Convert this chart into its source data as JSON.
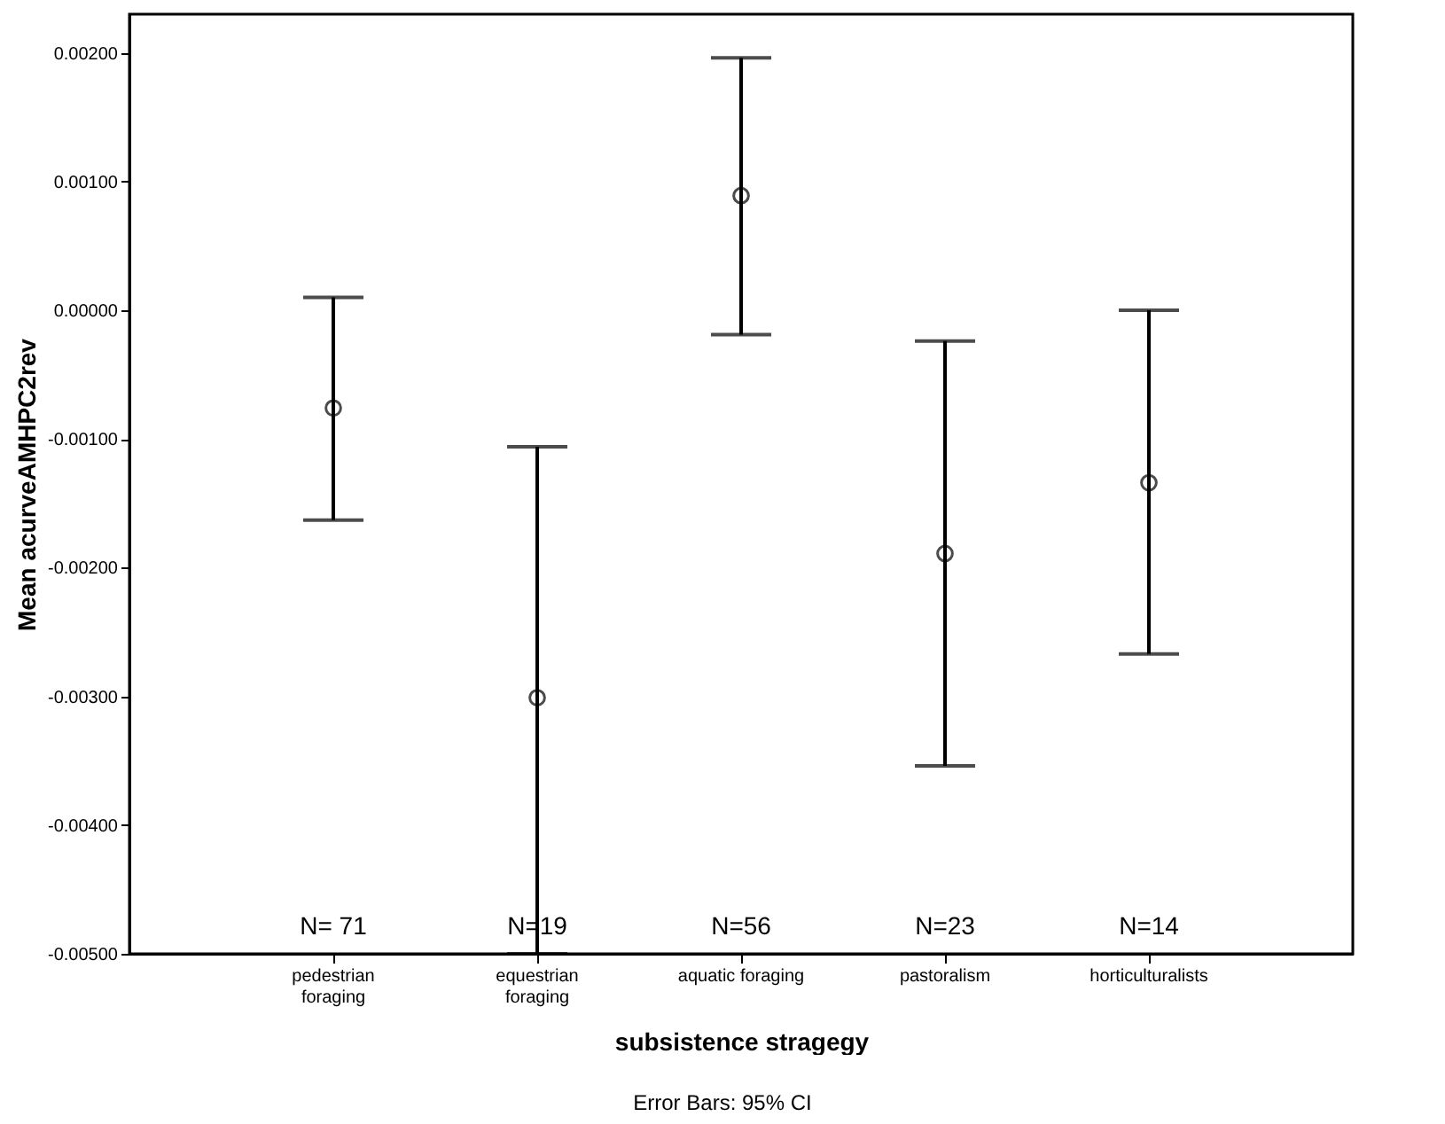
{
  "chart_data": {
    "type": "scatter",
    "xlabel": "subsistence stragegy",
    "ylabel": "Mean acurveAMHPC2rev",
    "categories": [
      "pedestrian\nforaging",
      "equestrian\nforaging",
      "aquatic foraging",
      "pastoralism",
      "horticulturalists"
    ],
    "values": [
      -0.00076,
      -0.00301,
      0.00089,
      -0.00189,
      -0.00134
    ],
    "errors": [
      [
        -0.00163,
        0.0001
      ],
      [
        -0.005,
        -0.00106
      ],
      [
        -0.00019,
        0.00196
      ],
      [
        -0.00354,
        -0.00024
      ],
      [
        -0.00267,
        0
      ]
    ],
    "color": "#000000",
    "marker": "circle",
    "ylim": [
      -0.005,
      0.0023
    ],
    "yticks": [
      {
        "value": -0.005,
        "label": "-0.00500"
      },
      {
        "value": -0.004,
        "label": "-0.00400"
      },
      {
        "value": -0.003,
        "label": "-0.00300"
      },
      {
        "value": -0.002,
        "label": "-0.00200"
      },
      {
        "value": -0.001,
        "label": "-0.00100"
      },
      {
        "value": 0,
        "label": "0.00000"
      },
      {
        "value": 0.001,
        "label": "0.00100"
      },
      {
        "value": 0.002,
        "label": "0.00200"
      }
    ],
    "annotations": [
      "N= 71",
      "N=19",
      "N=56",
      "N=23",
      "N=14",
      "Error Bars: 95% CI"
    ]
  }
}
